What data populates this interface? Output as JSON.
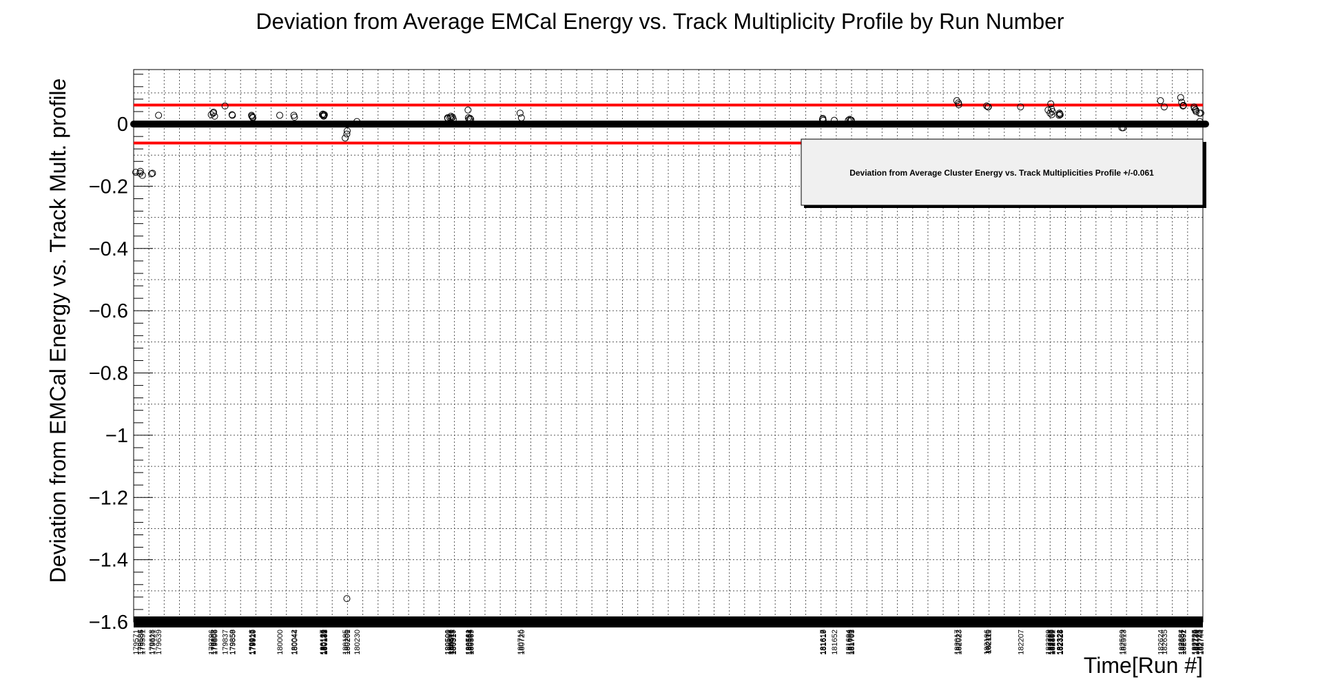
{
  "chart_data": {
    "type": "scatter",
    "title": "Deviation from Average EMCal Energy vs. Track Multiplicity Profile by Run Number",
    "xlabel": "Time[Run #]",
    "ylabel": "Deviation from EMCal Energy vs. Track Mult. profile",
    "ylim": [
      -1.6,
      0.175
    ],
    "grid": true,
    "y_ticks": [
      "0",
      "−0.2",
      "−0.4",
      "−0.6",
      "−0.8",
      "−1",
      "−1.2",
      "−1.4",
      "−1.6"
    ],
    "x_tick_labels": [
      "179571",
      "179584",
      "179585",
      "179591",
      "179618",
      "179621",
      "179639",
      "179796",
      "179802",
      "179803",
      "179806",
      "179837",
      "179858",
      "179859",
      "179916",
      "179917",
      "179919",
      "179920",
      "180000",
      "180042",
      "180044",
      "180127",
      "180129",
      "180130",
      "180131",
      "180132",
      "180133",
      "180195",
      "180200",
      "180201",
      "180230",
      "180500",
      "180501",
      "180507",
      "180510",
      "180511",
      "180515",
      "180517",
      "180561",
      "180562",
      "180564",
      "180567",
      "180569",
      "180716",
      "180720",
      "181617",
      "181618",
      "181619",
      "181652",
      "181694",
      "181698",
      "181701",
      "181703",
      "182017",
      "182022",
      "182023",
      "182106",
      "182110",
      "182111",
      "182207",
      "182289",
      "182295",
      "182297",
      "182299",
      "182300",
      "182302",
      "182322",
      "182323",
      "182324",
      "182325",
      "182509",
      "182513",
      "182624",
      "182635",
      "182684",
      "182687",
      "182691",
      "182692",
      "182724",
      "182725",
      "182728",
      "182729",
      "182730",
      "182740",
      "182741",
      "182744"
    ],
    "series": [
      {
        "color": "#000000",
        "x": [
          "179571",
          "179584",
          "179585",
          "179591",
          "179618",
          "179621",
          "179639",
          "179796",
          "179802",
          "179803",
          "179806",
          "179837",
          "179858",
          "179859",
          "179916",
          "179917",
          "179919",
          "179920",
          "180000",
          "180042",
          "180044",
          "180127",
          "180129",
          "180130",
          "180131",
          "180132",
          "180133",
          "180195",
          "180200",
          "180201",
          "180230",
          "180500",
          "180501",
          "180507",
          "180510",
          "180511",
          "180515",
          "180517",
          "180561",
          "180562",
          "180564",
          "180567",
          "180569",
          "180716",
          "180720",
          "181617",
          "181618",
          "181619",
          "181652",
          "181694",
          "181698",
          "181701",
          "181703",
          "182017",
          "182022",
          "182023",
          "182106",
          "182110",
          "182111",
          "182207",
          "182289",
          "182295",
          "182297",
          "182299",
          "182300",
          "182302",
          "182322",
          "182323",
          "182324",
          "182325",
          "182509",
          "182513",
          "182624",
          "182635",
          "182684",
          "182687",
          "182691",
          "182692",
          "182724",
          "182725",
          "182728",
          "182729",
          "182730",
          "182740",
          "182741",
          "182744"
        ],
        "values": [
          -0.155,
          -0.158,
          -0.152,
          -0.165,
          -0.16,
          -0.158,
          0.028,
          0.03,
          0.035,
          0.038,
          0.025,
          0.058,
          0.03,
          0.028,
          0.028,
          0.025,
          0.022,
          0.02,
          0.028,
          0.028,
          0.022,
          0.03,
          0.032,
          0.028,
          0.025,
          0.028,
          0.03,
          -0.045,
          -0.032,
          -0.022,
          0.008,
          0.02,
          0.018,
          0.02,
          0.025,
          0.02,
          0.022,
          0.015,
          0.045,
          0.02,
          0.015,
          0.018,
          0.015,
          0.035,
          0.02,
          0.015,
          0.018,
          0.012,
          0.012,
          0.012,
          0.015,
          0.013,
          0.012,
          0.075,
          0.068,
          0.062,
          0.058,
          0.055,
          0.055,
          0.055,
          0.045,
          0.035,
          0.065,
          0.048,
          0.03,
          0.04,
          0.028,
          0.035,
          0.032,
          0.03,
          -0.012,
          -0.012,
          0.075,
          0.055,
          0.085,
          0.07,
          0.058,
          0.06,
          0.055,
          0.05,
          0.045,
          0.045,
          0.04,
          0.035,
          0.008,
          0.035
        ],
        "outlier": {
          "x": "180200",
          "y": -1.525
        }
      }
    ],
    "zero_line": 0,
    "threshold_lines": [
      0.061,
      -0.061
    ],
    "threshold_color": "#ff0000",
    "legend": {
      "text": "Deviation from Average Cluster Energy vs. Track Multiplicities Profile +/-0.061",
      "placement": "top-right"
    }
  }
}
